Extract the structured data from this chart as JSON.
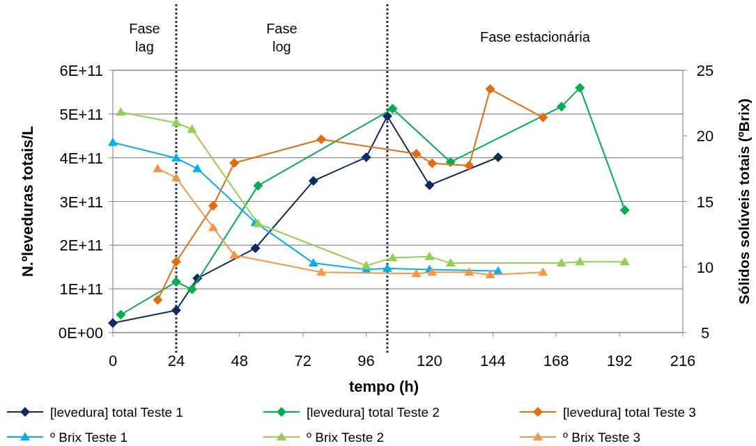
{
  "chart_data": {
    "type": "line",
    "xlabel": "tempo (h)",
    "ylabel": "N.ºleveduras totais/L",
    "y2label": "Sólidos solúveis totais (ºBrix)",
    "xlim": [
      0,
      216
    ],
    "xticks": [
      0,
      24,
      48,
      72,
      96,
      120,
      144,
      168,
      192,
      216
    ],
    "ylim": [
      0,
      600000000000
    ],
    "yticks": [
      {
        "value": 0,
        "label": "0E+00"
      },
      {
        "value": 100000000000,
        "label": "1E+11"
      },
      {
        "value": 200000000000,
        "label": "2E+11"
      },
      {
        "value": 300000000000,
        "label": "3E+11"
      },
      {
        "value": 400000000000,
        "label": "4E+11"
      },
      {
        "value": 500000000000,
        "label": "5E+11"
      },
      {
        "value": 600000000000,
        "label": "6E+11"
      }
    ],
    "y2lim": [
      5,
      25
    ],
    "y2ticks": [
      5,
      10,
      15,
      20,
      25
    ],
    "grid": "y",
    "legend": "bottom",
    "line_style": "solid",
    "ref_lines": [
      {
        "axis": "x",
        "value": 24,
        "color": "#1f3864",
        "line_style": "dotted"
      },
      {
        "axis": "x",
        "value": 104,
        "color": "#1f3864",
        "line_style": "dotted"
      }
    ],
    "annotations": [
      "Fase\nlag",
      "Fase\nlog",
      "Fase estacionária"
    ],
    "series": [
      {
        "name": "[levedura] total Teste 1",
        "color": "#0d2a63",
        "marker": "diamond",
        "x": [
          0,
          24,
          32,
          54,
          76,
          96,
          104,
          120,
          146
        ],
        "values": [
          22000000000,
          51000000000,
          124000000000,
          193000000000,
          347000000000,
          401000000000,
          495000000000,
          337000000000,
          401000000000
        ]
      },
      {
        "name": "[levedura] total Teste 2",
        "color": "#00b050",
        "marker": "diamond",
        "x": [
          3,
          24,
          30,
          55,
          106,
          128,
          170,
          177,
          194
        ],
        "values": [
          41000000000,
          116000000000,
          99000000000,
          336000000000,
          512000000000,
          390000000000,
          517000000000,
          560000000000,
          280000000000
        ]
      },
      {
        "name": "[levedura] total Teste 3",
        "color": "#e46c0a",
        "marker": "diamond",
        "x": [
          17,
          24,
          38,
          46,
          79,
          115,
          121,
          135,
          143,
          163
        ],
        "values": [
          75000000000,
          162000000000,
          290000000000,
          388000000000,
          442000000000,
          409000000000,
          387000000000,
          382000000000,
          557000000000,
          492000000000
        ]
      },
      {
        "name": "º Brix Teste 1",
        "color": "#00b0f0",
        "marker": "triangle",
        "axis": "y2",
        "x": [
          0,
          24,
          32,
          54,
          76,
          96,
          104,
          120,
          146
        ],
        "values": [
          19.5,
          18.3,
          17.5,
          13.4,
          10.3,
          9.8,
          9.9,
          9.8,
          9.7
        ]
      },
      {
        "name": "º Brix Teste 2",
        "color": "#92d050",
        "marker": "triangle",
        "axis": "y2",
        "x": [
          3,
          24,
          30,
          55,
          96,
          106,
          120,
          128,
          170,
          177,
          194
        ],
        "values": [
          21.8,
          21.0,
          20.5,
          13.3,
          10.1,
          10.7,
          10.8,
          10.3,
          10.3,
          10.4,
          10.4
        ]
      },
      {
        "name": "º Brix Teste 3",
        "color": "#f79646",
        "marker": "triangle",
        "axis": "y2",
        "x": [
          17,
          24,
          38,
          46,
          79,
          115,
          121,
          135,
          143,
          163
        ],
        "values": [
          17.5,
          16.8,
          13.0,
          10.9,
          9.6,
          9.5,
          9.6,
          9.6,
          9.4,
          9.6
        ]
      }
    ]
  }
}
